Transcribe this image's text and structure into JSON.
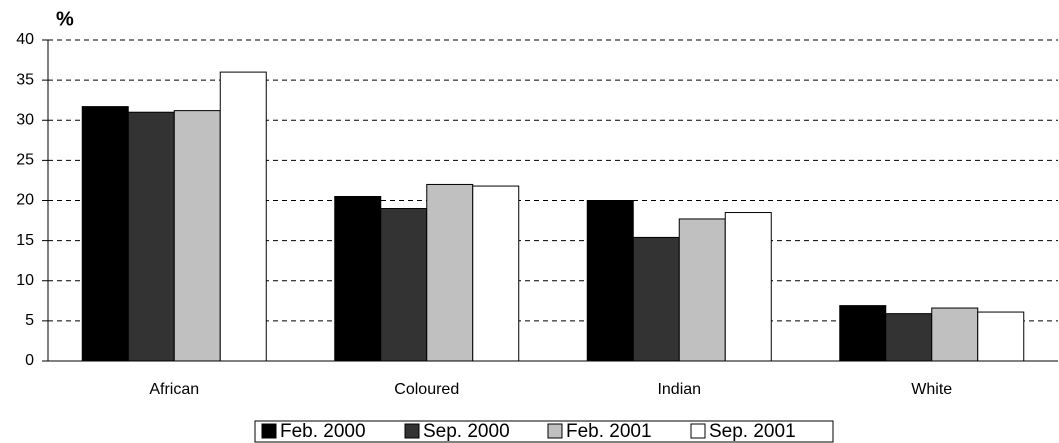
{
  "chart_data": {
    "type": "bar",
    "y_label": "%",
    "categories": [
      "African",
      "Coloured",
      "Indian",
      "White"
    ],
    "series": [
      {
        "name": "Feb. 2000",
        "color": "#000000",
        "values": [
          31.7,
          20.5,
          20.0,
          6.9
        ]
      },
      {
        "name": "Sep. 2000",
        "color": "#333333",
        "values": [
          31.0,
          19.0,
          15.4,
          5.9
        ]
      },
      {
        "name": "Feb. 2001",
        "color": "#c0c0c0",
        "values": [
          31.2,
          22.0,
          17.7,
          6.6
        ]
      },
      {
        "name": "Sep. 2001",
        "color": "#ffffff",
        "values": [
          36.0,
          21.8,
          18.5,
          6.1
        ]
      }
    ],
    "ylim": [
      0,
      40
    ],
    "yticks": [
      0,
      5,
      10,
      15,
      20,
      25,
      30,
      35,
      40
    ],
    "grid": true,
    "legend": "bottom"
  }
}
